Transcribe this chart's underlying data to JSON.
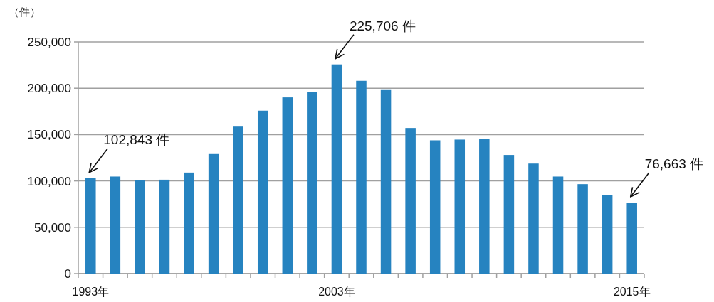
{
  "chart_data": {
    "type": "bar",
    "ylabel": "（件）",
    "categories": [
      "1993年",
      null,
      null,
      null,
      null,
      null,
      null,
      null,
      null,
      null,
      "2003年",
      null,
      null,
      null,
      null,
      null,
      null,
      null,
      null,
      null,
      null,
      null,
      "2015年"
    ],
    "values": [
      102843,
      104700,
      100600,
      101300,
      109000,
      129000,
      158600,
      175800,
      190100,
      196000,
      225706,
      208000,
      198800,
      157100,
      143800,
      144600,
      145600,
      128000,
      118700,
      104700,
      96500,
      84700,
      76663
    ],
    "color": "#2683c0",
    "ylim": [
      0,
      250000
    ],
    "yticks": [
      0,
      {
        "value": 50000,
        "label": "50,000"
      },
      {
        "value": 100000,
        "label": "100,000"
      },
      {
        "value": 150000,
        "label": "150,000"
      },
      {
        "value": 200000,
        "label": "200,000"
      },
      {
        "value": 250000,
        "label": "250,000"
      }
    ],
    "grid": "y",
    "annotations": [
      {
        "text": "102,843 件",
        "x": "1993年",
        "y": 102843
      },
      {
        "text": "225,706 件",
        "x": "2003年",
        "y": 225706
      },
      {
        "text": "76,663 件",
        "x": "2015年",
        "y": 76663
      }
    ]
  }
}
